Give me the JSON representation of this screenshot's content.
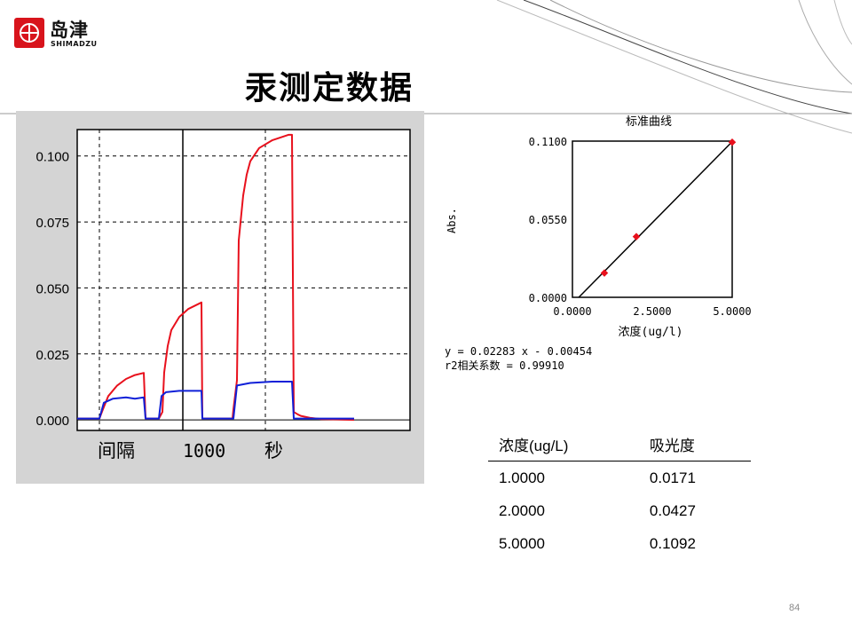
{
  "logo": {
    "cn": "岛津",
    "en": "SHIMADZU"
  },
  "slide": {
    "title": "汞测定数据",
    "page_number": "84"
  },
  "time_chart": {
    "y_ticks": [
      "0.100",
      "0.075",
      "0.050",
      "0.025",
      "0.000"
    ],
    "x_label_left": "间隔",
    "x_label_mid": "1000",
    "x_label_right": "秒"
  },
  "calibration": {
    "title": "标准曲线",
    "ylabel": "Abs.",
    "xlabel": "浓度(ug/l)",
    "y_ticks": [
      "0.1100",
      "0.0550",
      "0.0000"
    ],
    "x_ticks": [
      "0.0000",
      "2.5000",
      "5.0000"
    ],
    "equation": "y = 0.02283 x - 0.00454",
    "r2": "r2相关系数 = 0.99910"
  },
  "table": {
    "headers": [
      "浓度(ug/L)",
      "吸光度"
    ],
    "rows": [
      [
        "1.0000",
        "0.0171"
      ],
      [
        "2.0000",
        "0.0427"
      ],
      [
        "5.0000",
        "0.1092"
      ]
    ]
  },
  "chart_data": [
    {
      "type": "line",
      "title": "",
      "xlabel": "间隔 1000 秒",
      "ylabel": "",
      "ylim": [
        -0.004,
        0.11
      ],
      "grid": true,
      "series": [
        {
          "name": "",
          "color": "#e8101c",
          "x": [
            0,
            25,
            29,
            35,
            45,
            55,
            65,
            75,
            77,
            92,
            96,
            98,
            102,
            106,
            115,
            125,
            140,
            141,
            146,
            158,
            175,
            176,
            180,
            182,
            187,
            191,
            195,
            205,
            220,
            238,
            242,
            244,
            249,
            252,
            262,
            275,
            312
          ],
          "y": [
            0.0005,
            0.0005,
            0.004,
            0.009,
            0.013,
            0.0155,
            0.017,
            0.0178,
            0.0005,
            0.0005,
            0.003,
            0.018,
            0.028,
            0.034,
            0.039,
            0.042,
            0.0445,
            0.0005,
            0.0005,
            0.0005,
            0.0005,
            0.004,
            0.015,
            0.068,
            0.085,
            0.093,
            0.098,
            0.103,
            0.106,
            0.108,
            0.108,
            0.003,
            0.002,
            0.0015,
            0.0008,
            0.0003,
            0.0
          ]
        },
        {
          "name": "",
          "color": "#1020d8",
          "x": [
            0,
            25,
            30,
            40,
            55,
            65,
            75,
            77,
            92,
            95,
            100,
            115,
            140,
            141,
            162,
            175,
            176,
            180,
            195,
            220,
            242,
            244,
            262,
            275,
            312
          ],
          "y": [
            0.0005,
            0.0005,
            0.0065,
            0.008,
            0.0085,
            0.008,
            0.0085,
            0.0005,
            0.0005,
            0.009,
            0.0105,
            0.011,
            0.011,
            0.0005,
            0.0005,
            0.0005,
            0.0005,
            0.013,
            0.014,
            0.0145,
            0.0145,
            0.0005,
            0.0005,
            0.0005,
            0.0005
          ]
        }
      ]
    },
    {
      "type": "scatter",
      "title": "标准曲线",
      "xlabel": "浓度(ug/l)",
      "ylabel": "Abs.",
      "xlim": [
        0,
        5
      ],
      "ylim": [
        0,
        0.11
      ],
      "points": {
        "x": [
          1.0,
          2.0,
          5.0
        ],
        "y": [
          0.0171,
          0.0427,
          0.1092
        ],
        "color": "#e8101c"
      },
      "fit": {
        "slope": 0.02283,
        "intercept": -0.00454,
        "color": "#000000"
      }
    }
  ]
}
